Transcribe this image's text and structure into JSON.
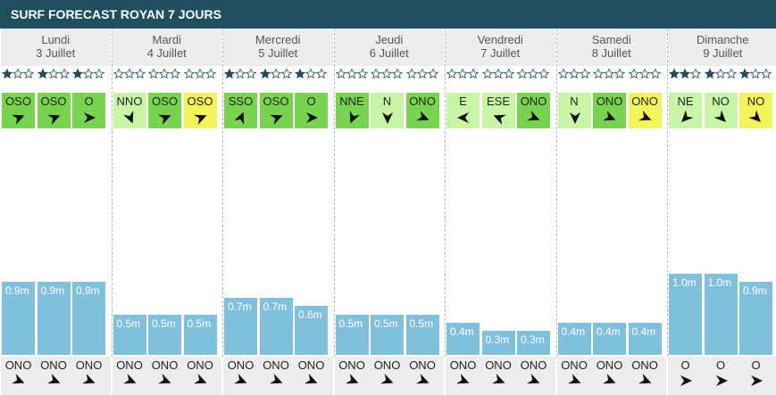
{
  "title": "SURF FORECAST ROYAN 7 JOURS",
  "days": [
    {
      "name": "Lundi",
      "date": "3 Juillet",
      "slots": [
        {
          "stars": 1,
          "wind": "OSO",
          "wind_color": "#78d44e",
          "height": 0.9,
          "height_label": "0.9m",
          "swell": "ONO"
        },
        {
          "stars": 1,
          "wind": "OSO",
          "wind_color": "#78d44e",
          "height": 0.9,
          "height_label": "0.9m",
          "swell": "ONO"
        },
        {
          "stars": 1,
          "wind": "O",
          "wind_color": "#78d44e",
          "height": 0.9,
          "height_label": "0.9m",
          "swell": "ONO"
        }
      ]
    },
    {
      "name": "Mardi",
      "date": "4 Juillet",
      "slots": [
        {
          "stars": 0,
          "wind": "NNO",
          "wind_color": "#c7f5a5",
          "height": 0.5,
          "height_label": "0.5m",
          "swell": "ONO"
        },
        {
          "stars": 0,
          "wind": "OSO",
          "wind_color": "#78d44e",
          "height": 0.5,
          "height_label": "0.5m",
          "swell": "ONO"
        },
        {
          "stars": 0,
          "wind": "OSO",
          "wind_color": "#f3f35a",
          "height": 0.5,
          "height_label": "0.5m",
          "swell": "ONO"
        }
      ]
    },
    {
      "name": "Mercredi",
      "date": "5 Juillet",
      "slots": [
        {
          "stars": 1,
          "wind": "SSO",
          "wind_color": "#78d44e",
          "height": 0.7,
          "height_label": "0.7m",
          "swell": "ONO"
        },
        {
          "stars": 1,
          "wind": "OSO",
          "wind_color": "#78d44e",
          "height": 0.7,
          "height_label": "0.7m",
          "swell": "ONO"
        },
        {
          "stars": 1,
          "wind": "O",
          "wind_color": "#78d44e",
          "height": 0.6,
          "height_label": "0.6m",
          "swell": "ONO"
        }
      ]
    },
    {
      "name": "Jeudi",
      "date": "6 Juillet",
      "slots": [
        {
          "stars": 0,
          "wind": "NNE",
          "wind_color": "#78d44e",
          "height": 0.5,
          "height_label": "0.5m",
          "swell": "ONO"
        },
        {
          "stars": 0,
          "wind": "N",
          "wind_color": "#c7f5a5",
          "height": 0.5,
          "height_label": "0.5m",
          "swell": "ONO"
        },
        {
          "stars": 0,
          "wind": "ONO",
          "wind_color": "#78d44e",
          "height": 0.5,
          "height_label": "0.5m",
          "swell": "ONO"
        }
      ]
    },
    {
      "name": "Vendredi",
      "date": "7 Juillet",
      "slots": [
        {
          "stars": 0,
          "wind": "E",
          "wind_color": "#c7f5a5",
          "height": 0.4,
          "height_label": "0.4m",
          "swell": "ONO"
        },
        {
          "stars": 0,
          "wind": "ESE",
          "wind_color": "#c7f5a5",
          "height": 0.3,
          "height_label": "0.3m",
          "swell": "ONO"
        },
        {
          "stars": 0,
          "wind": "ONO",
          "wind_color": "#78d44e",
          "height": 0.3,
          "height_label": "0.3m",
          "swell": "ONO"
        }
      ]
    },
    {
      "name": "Samedi",
      "date": "8 Juillet",
      "slots": [
        {
          "stars": 0,
          "wind": "N",
          "wind_color": "#c7f5a5",
          "height": 0.4,
          "height_label": "0.4m",
          "swell": "ONO"
        },
        {
          "stars": 0,
          "wind": "ONO",
          "wind_color": "#78d44e",
          "height": 0.4,
          "height_label": "0.4m",
          "swell": "ONO"
        },
        {
          "stars": 0,
          "wind": "ONO",
          "wind_color": "#f3f35a",
          "height": 0.4,
          "height_label": "0.4m",
          "swell": "ONO"
        }
      ]
    },
    {
      "name": "Dimanche",
      "date": "9 Juillet",
      "slots": [
        {
          "stars": 2,
          "wind": "NE",
          "wind_color": "#c7f5a5",
          "height": 1,
          "height_label": "1.0m",
          "swell": "O"
        },
        {
          "stars": 1,
          "wind": "NO",
          "wind_color": "#c7f5a5",
          "height": 1,
          "height_label": "1.0m",
          "swell": "O"
        },
        {
          "stars": 1,
          "wind": "NO",
          "wind_color": "#f3f35a",
          "height": 0.9,
          "height_label": "0.9m",
          "swell": "O"
        }
      ]
    }
  ]
}
